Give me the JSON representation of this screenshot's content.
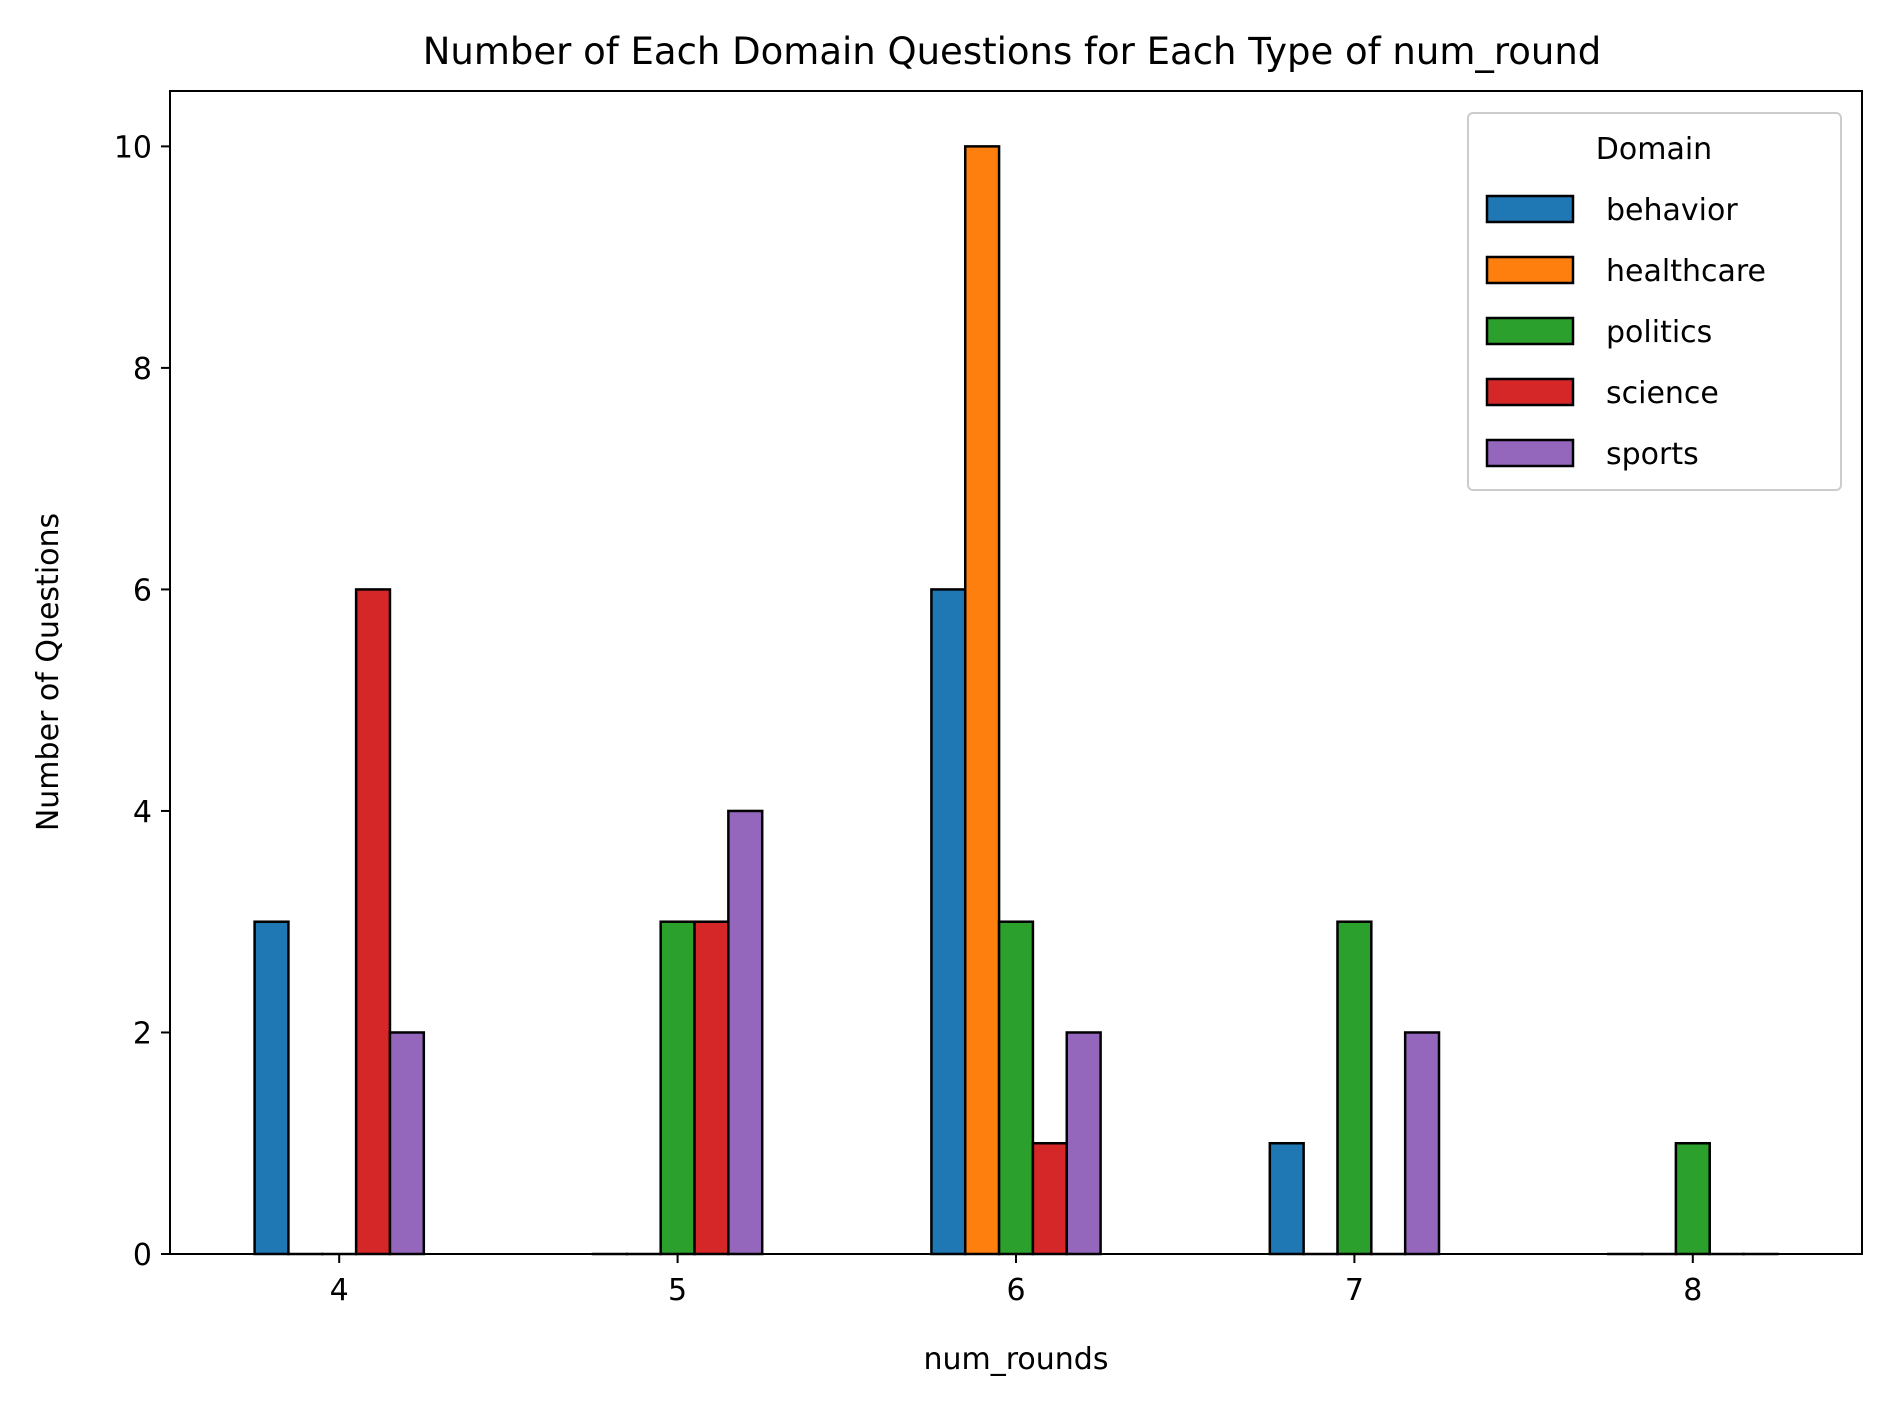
{
  "chart_data": {
    "type": "bar",
    "title": "Number of Each Domain Questions for Each Type of num_round",
    "xlabel": "num_rounds",
    "ylabel": "Number of Questions",
    "categories": [
      "4",
      "5",
      "6",
      "7",
      "8"
    ],
    "ylim": [
      0,
      10.5
    ],
    "yticks": [
      0,
      2,
      4,
      6,
      8,
      10
    ],
    "grid": false,
    "legend": {
      "title": "Domain",
      "placement": "top-right"
    },
    "series": [
      {
        "name": "behavior",
        "color": "#1f77b4",
        "values": [
          3,
          0,
          6,
          1,
          0
        ]
      },
      {
        "name": "healthcare",
        "color": "#ff7f0e",
        "values": [
          0,
          0,
          10,
          0,
          0
        ]
      },
      {
        "name": "politics",
        "color": "#2ca02c",
        "values": [
          0,
          3,
          3,
          3,
          1
        ]
      },
      {
        "name": "science",
        "color": "#d62728",
        "values": [
          6,
          3,
          1,
          0,
          0
        ]
      },
      {
        "name": "sports",
        "color": "#9467bd",
        "values": [
          2,
          4,
          2,
          2,
          0
        ]
      }
    ]
  }
}
